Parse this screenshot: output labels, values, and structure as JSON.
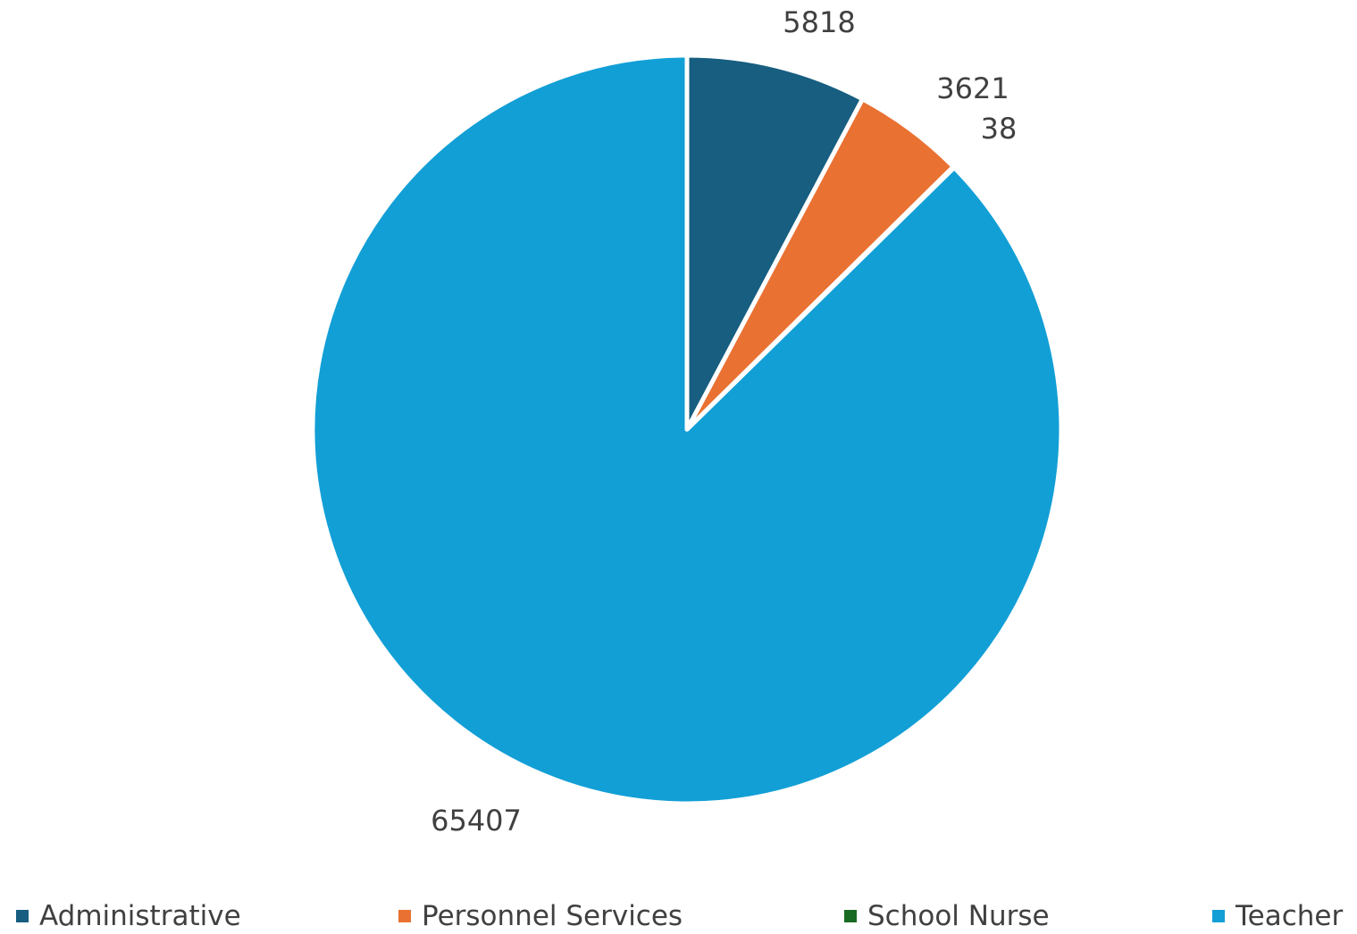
{
  "chart_data": {
    "type": "pie",
    "categories": [
      "Administrative",
      "Personnel Services",
      "School Nurse",
      "Teacher"
    ],
    "values": [
      5818,
      3621,
      38,
      65407
    ],
    "colors": [
      "#175e80",
      "#e97132",
      "#196b24",
      "#129fd6"
    ],
    "data_labels": [
      "5818",
      "3621",
      "38",
      "65407"
    ],
    "legend": [
      "Administrative",
      "Personnel Services",
      "School Nurse",
      "Teacher"
    ],
    "legend_position": "bottom",
    "start_angle": "12 o'clock",
    "direction": "clockwise"
  }
}
